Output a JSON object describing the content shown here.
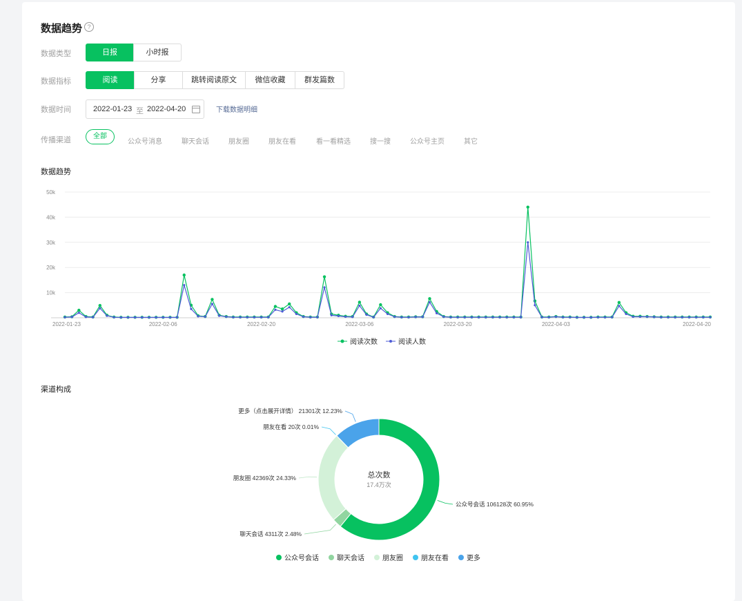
{
  "header": {
    "title": "数据趋势",
    "help": "?"
  },
  "filters": {
    "type_label": "数据类型",
    "type_options": [
      "日报",
      "小时报"
    ],
    "metric_label": "数据指标",
    "metric_options": [
      "阅读",
      "分享",
      "跳转阅读原文",
      "微信收藏",
      "群发篇数"
    ],
    "time_label": "数据时间",
    "date_start": "2022-01-23",
    "date_to": "至",
    "date_end": "2022-04-20",
    "download_link": "下载数据明细",
    "channel_label": "传播渠道",
    "channels": [
      "全部",
      "公众号消息",
      "聊天会话",
      "朋友圈",
      "朋友在看",
      "看一看精选",
      "搜一搜",
      "公众号主页",
      "其它"
    ]
  },
  "trend": {
    "section_title": "数据趋势",
    "chart_data": {
      "type": "line",
      "y_ticks": [
        "50k",
        "40k",
        "30k",
        "20k",
        "10k"
      ],
      "ylim": [
        0,
        50000
      ],
      "x_tick_labels": [
        "2022-01-23",
        "2022-02-06",
        "2022-02-20",
        "2022-03-06",
        "2022-03-20",
        "2022-04-03",
        "2022-04-20"
      ],
      "series": [
        {
          "name": "阅读次数",
          "color": "#07c160",
          "values": [
            300,
            400,
            3000,
            500,
            300,
            4900,
            1000,
            300,
            200,
            200,
            200,
            200,
            200,
            200,
            200,
            200,
            200,
            17000,
            5000,
            800,
            500,
            7300,
            1000,
            500,
            300,
            300,
            300,
            300,
            300,
            300,
            4500,
            3500,
            5500,
            2000,
            500,
            300,
            300,
            16300,
            1500,
            1000,
            600,
            500,
            6200,
            1500,
            300,
            5200,
            2000,
            500,
            300,
            300,
            400,
            400,
            7600,
            2500,
            500,
            300,
            300,
            300,
            300,
            300,
            300,
            300,
            300,
            300,
            300,
            300,
            44000,
            6700,
            300,
            300,
            500,
            300,
            300,
            200,
            200,
            200,
            300,
            300,
            300,
            6100,
            2000,
            600,
            600,
            500,
            400,
            300,
            300,
            300,
            300,
            300,
            300,
            300,
            300
          ]
        },
        {
          "name": "阅读人数",
          "color": "#4e5bd6",
          "values": [
            200,
            300,
            2000,
            300,
            200,
            3800,
            800,
            200,
            150,
            150,
            150,
            150,
            150,
            150,
            150,
            150,
            150,
            13000,
            3500,
            600,
            400,
            5500,
            800,
            400,
            200,
            200,
            200,
            200,
            200,
            200,
            3200,
            2500,
            4200,
            1500,
            400,
            200,
            200,
            12100,
            1000,
            700,
            400,
            300,
            4800,
            1200,
            200,
            3800,
            1500,
            400,
            200,
            200,
            300,
            300,
            6200,
            1800,
            400,
            200,
            200,
            200,
            200,
            200,
            200,
            200,
            200,
            200,
            200,
            200,
            30000,
            5000,
            200,
            200,
            400,
            200,
            200,
            150,
            150,
            150,
            200,
            200,
            200,
            4700,
            1500,
            400,
            400,
            400,
            300,
            200,
            200,
            200,
            200,
            200,
            200,
            200,
            200
          ]
        }
      ]
    }
  },
  "composition": {
    "section_title": "渠道构成",
    "center_title": "总次数",
    "center_value": "17.4万次",
    "chart_data": {
      "type": "pie",
      "slices": [
        {
          "name": "公众号会话",
          "value": 106128,
          "percent": "60.95%",
          "label": "公众号会话 106128次 60.95%",
          "color": "#07c160"
        },
        {
          "name": "聊天会话",
          "value": 4311,
          "percent": "2.48%",
          "label": "聊天会话 4311次 2.48%",
          "color": "#91d5a0"
        },
        {
          "name": "朋友圈",
          "value": 42369,
          "percent": "24.33%",
          "label": "朋友圈 42369次 24.33%",
          "color": "#d3f1d8"
        },
        {
          "name": "朋友在看",
          "value": 20,
          "percent": "0.01%",
          "label": "朋友在看 20次 0.01%",
          "color": "#40c4f0"
        },
        {
          "name": "更多",
          "value": 21301,
          "percent": "12.23%",
          "label": "更多（点击展开详情） 21301次 12.23%",
          "color": "#4aa3ea"
        }
      ]
    }
  }
}
